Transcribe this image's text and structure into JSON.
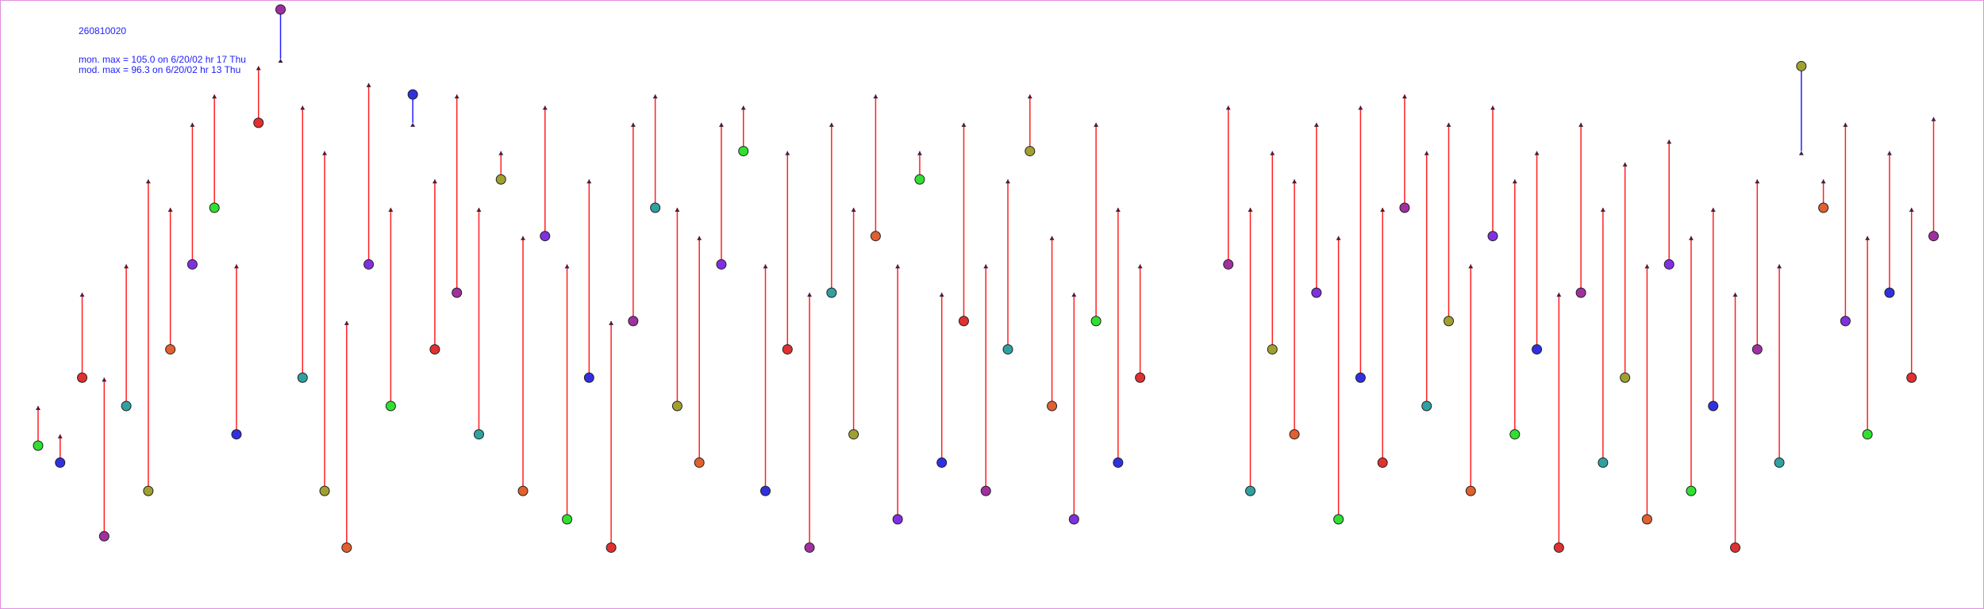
{
  "chart_data": {
    "type": "pairs",
    "title": "260810020",
    "annotations": [
      "mon. max =   105.0 on 6/20/02 hr 17 Thu",
      "mod. max =    96.3 on 6/20/02 hr 13 Thu"
    ],
    "x": [
      0,
      3,
      6,
      9,
      12,
      15,
      18,
      21,
      24,
      27,
      30,
      33,
      36,
      39,
      42,
      45,
      48,
      51,
      54,
      57,
      60,
      63,
      66,
      69,
      72,
      75,
      78,
      81,
      84,
      87,
      90,
      93,
      96,
      99,
      102,
      105,
      108,
      111,
      114,
      117,
      120,
      123,
      126,
      129,
      132,
      135,
      138,
      141,
      144,
      147,
      150,
      162,
      165,
      168,
      171,
      174,
      177,
      180,
      183,
      186,
      189,
      192,
      195,
      198,
      201,
      204,
      207,
      210,
      213,
      216,
      219,
      222,
      225,
      228,
      231,
      234,
      237,
      240,
      243,
      246,
      249,
      252,
      255,
      258
    ],
    "series": [
      {
        "values": [
          28,
          25,
          40,
          12,
          35,
          20,
          45,
          60,
          70,
          30,
          85,
          105,
          40,
          20,
          10,
          60,
          35,
          90,
          45,
          55,
          30,
          75,
          20,
          65,
          15,
          40,
          10,
          50,
          70,
          35,
          25,
          60,
          80,
          20,
          45,
          10,
          55,
          30,
          65,
          15,
          75,
          25,
          50,
          20,
          45,
          80,
          35,
          15,
          50,
          25,
          40,
          60,
          20,
          45,
          30,
          55,
          15,
          40,
          25,
          70,
          35,
          50,
          20,
          65,
          30,
          45,
          10,
          55,
          25,
          40,
          15,
          60,
          20,
          35,
          10,
          45,
          25,
          95,
          70,
          50,
          30,
          55,
          40,
          65
        ]
      },
      {
        "values": [
          35,
          30,
          55,
          40,
          60,
          75,
          70,
          85,
          90,
          60,
          95,
          96.3,
          88,
          80,
          50,
          92,
          70,
          85,
          75,
          90,
          70,
          80,
          65,
          88,
          60,
          75,
          50,
          85,
          90,
          70,
          65,
          85,
          88,
          60,
          80,
          55,
          85,
          70,
          90,
          60,
          80,
          55,
          85,
          60,
          75,
          90,
          65,
          55,
          85,
          70,
          60,
          88,
          70,
          80,
          75,
          85,
          65,
          88,
          70,
          90,
          80,
          85,
          60,
          88,
          75,
          80,
          55,
          85,
          70,
          78,
          60,
          82,
          65,
          70,
          55,
          75,
          60,
          80,
          75,
          85,
          65,
          80,
          70,
          86
        ]
      }
    ],
    "xlim": [
      0,
      260
    ],
    "ylim": [
      0,
      105
    ],
    "up_color": "#ff2020",
    "down_color": "#2020ff",
    "marker_colors": [
      "#30e030",
      "#3030e0",
      "#e03030",
      "#a030a0",
      "#30a0a0",
      "#a0a030",
      "#e06030",
      "#8030e0"
    ],
    "text_color": "#2020ff"
  }
}
